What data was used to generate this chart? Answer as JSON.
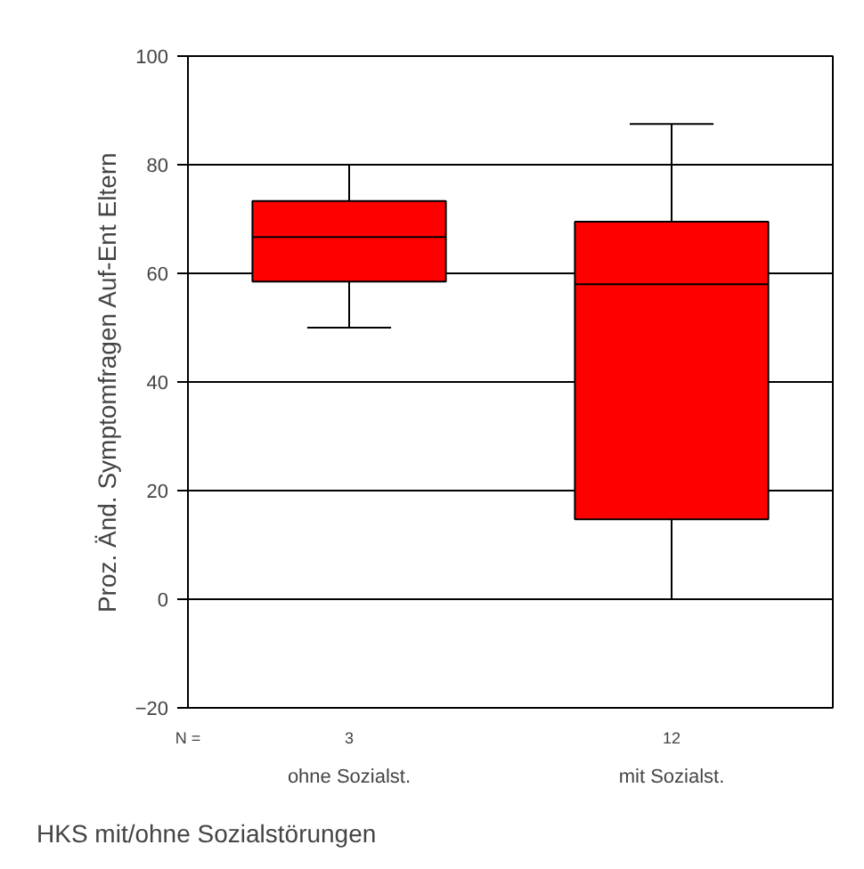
{
  "chart_data": {
    "type": "box",
    "categories": [
      "ohne Sozialst.",
      "mit Sozialst."
    ],
    "boxes": [
      {
        "low": 50,
        "q1": 58.5,
        "median": 66.7,
        "q3": 73.3,
        "high": 80
      },
      {
        "low": 0,
        "q1": 14.7,
        "median": 58,
        "q3": 69.5,
        "high": 87.5
      }
    ],
    "color": "#ff0000",
    "ylabel": "Proz. Änd. Symptomfragen Auf-Ent Eltern",
    "xlabel": "HKS mit/ohne Sozialstörungen",
    "ylim": [
      -20,
      100
    ],
    "yticks": [
      -20,
      0,
      20,
      40,
      60,
      80,
      100
    ],
    "grid": "y",
    "annotations": [
      "N =",
      "3",
      "12"
    ]
  }
}
